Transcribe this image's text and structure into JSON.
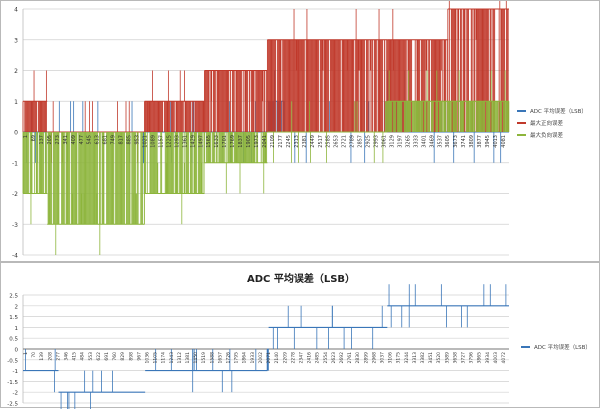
{
  "chart_data": [
    {
      "type": "line",
      "title": "",
      "xlabel": "",
      "ylabel": "",
      "ylim": [
        -4,
        4
      ],
      "yticks": [
        -4,
        -3,
        -2,
        -1,
        0,
        1,
        2,
        3,
        4
      ],
      "grid": true,
      "legend_position": "right",
      "x_tick_labels": [
        "1",
        "69",
        "137",
        "205",
        "273",
        "341",
        "409",
        "477",
        "545",
        "613",
        "681",
        "749",
        "817",
        "885",
        "953",
        "1021",
        "1089",
        "1157",
        "1225",
        "1293",
        "1361",
        "1429",
        "1497",
        "1565",
        "1633",
        "1701",
        "1769",
        "1837",
        "1905",
        "1973",
        "2041",
        "2109",
        "2177",
        "2245",
        "2313",
        "2381",
        "2449",
        "2517",
        "2585",
        "2653",
        "2721",
        "2789",
        "2857",
        "2925",
        "2993",
        "3061",
        "3129",
        "3197",
        "3265",
        "3333",
        "3401",
        "3469",
        "3537",
        "3605",
        "3673",
        "3741",
        "3809",
        "3877",
        "3945",
        "4013",
        "4081"
      ],
      "series": [
        {
          "name": "ADC 平均误差（LSB）",
          "color": "#3a76b8",
          "segments": [
            {
              "from": 1,
              "to": 1015,
              "value": 0
            },
            {
              "from": 1015,
              "to": 1025,
              "value": -1
            },
            {
              "from": 1025,
              "to": 2057,
              "value": 0
            },
            {
              "from": 2057,
              "to": 2200,
              "value": 1
            },
            {
              "from": 2200,
              "to": 3070,
              "value": 0
            },
            {
              "from": 3070,
              "to": 3250,
              "value": 1
            },
            {
              "from": 3250,
              "to": 4095,
              "value": 0
            }
          ]
        },
        {
          "name": "最大正向误差",
          "color": "#c0392b",
          "segments": [
            {
              "from": 1,
              "to": 205,
              "value": 1
            },
            {
              "from": 205,
              "to": 1025,
              "value": 0
            },
            {
              "from": 1025,
              "to": 1530,
              "value": 1
            },
            {
              "from": 1530,
              "to": 2060,
              "value": 2
            },
            {
              "from": 2060,
              "to": 3070,
              "value": 3
            },
            {
              "from": 3070,
              "to": 3580,
              "value": 3
            },
            {
              "from": 3580,
              "to": 4095,
              "value": 4
            }
          ]
        },
        {
          "name": "最大负向误差",
          "color": "#8db53c",
          "segments": [
            {
              "from": 1,
              "to": 205,
              "value": -2
            },
            {
              "from": 205,
              "to": 1025,
              "value": -3
            },
            {
              "from": 1025,
              "to": 1530,
              "value": -2
            },
            {
              "from": 1530,
              "to": 2060,
              "value": -1
            },
            {
              "from": 2060,
              "to": 2600,
              "value": 0
            },
            {
              "from": 2600,
              "to": 3070,
              "value": 0
            },
            {
              "from": 3070,
              "to": 4095,
              "value": 1
            }
          ]
        }
      ]
    },
    {
      "type": "line",
      "title": "ADC 平均误差（LSB）",
      "xlabel": "",
      "ylabel": "",
      "ylim": [
        -2.5,
        2.5
      ],
      "yticks": [
        -2.5,
        -2,
        -1.5,
        -1,
        -0.5,
        0,
        0.5,
        1,
        1.5,
        2,
        2.5
      ],
      "grid": true,
      "legend_position": "right",
      "x_tick_labels": [
        "1",
        "70",
        "139",
        "208",
        "277",
        "346",
        "415",
        "484",
        "553",
        "622",
        "691",
        "760",
        "829",
        "898",
        "967",
        "1036",
        "1105",
        "1174",
        "1243",
        "1312",
        "1381",
        "1450",
        "1519",
        "1588",
        "1657",
        "1726",
        "1795",
        "1864",
        "1933",
        "2002",
        "2071",
        "2140",
        "2209",
        "2278",
        "2347",
        "2416",
        "2485",
        "2554",
        "2623",
        "2692",
        "2761",
        "2830",
        "2899",
        "2968",
        "3037",
        "3106",
        "3175",
        "3244",
        "3313",
        "3382",
        "3451",
        "3520",
        "3589",
        "3658",
        "3727",
        "3796",
        "3865",
        "3934",
        "4003",
        "4072"
      ],
      "series": [
        {
          "name": "ADC 平均误差（LSB）",
          "color": "#3a76b8",
          "segments": [
            {
              "from": 1,
              "to": 300,
              "value": -1
            },
            {
              "from": 300,
              "to": 1030,
              "value": -2
            },
            {
              "from": 1030,
              "to": 2060,
              "value": -1
            },
            {
              "from": 2060,
              "to": 2070,
              "value": 0
            },
            {
              "from": 2070,
              "to": 3070,
              "value": 1
            },
            {
              "from": 3070,
              "to": 4095,
              "value": 2
            }
          ]
        }
      ]
    }
  ]
}
